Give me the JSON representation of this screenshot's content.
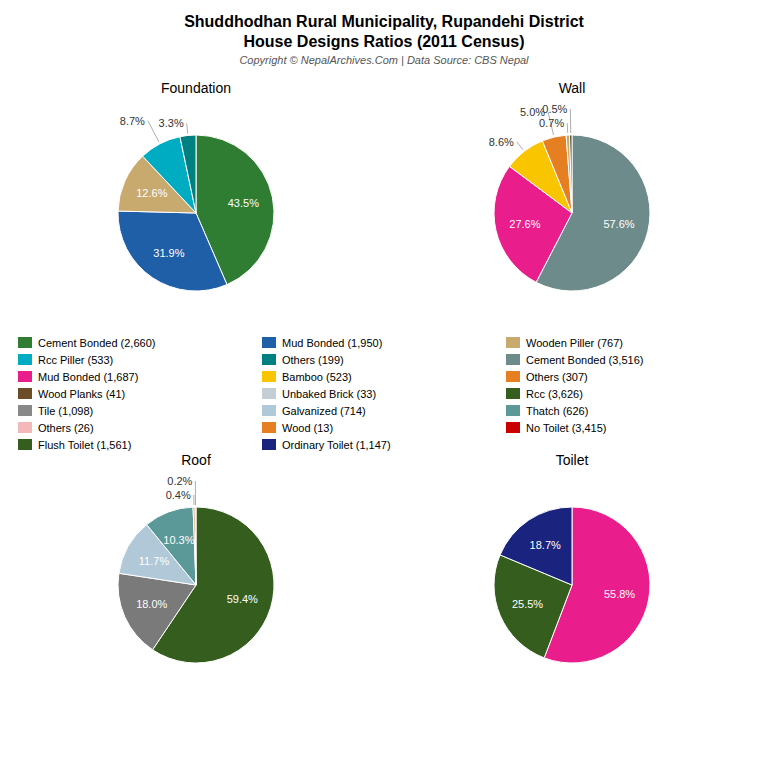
{
  "title": "Shuddhodhan Rural Municipality, Rupandehi District",
  "subtitle": "House Designs Ratios (2011 Census)",
  "annotations": [
    "Copyright © NepalArchives.Com | Data Source: CBS Nepal"
  ],
  "legend_entries": [
    {
      "name": "Cement Bonded (2,660)",
      "color": "#2e7d32"
    },
    {
      "name": "Rcc Piller (533)",
      "color": "#00acc1"
    },
    {
      "name": "Mud Bonded (1,687)",
      "color": "#e91e8c"
    },
    {
      "name": "Wood Planks (41)",
      "color": "#6d4c28"
    },
    {
      "name": "Tile (1,098)",
      "color": "#888888"
    },
    {
      "name": "Others (26)",
      "color": "#f4b8b8"
    },
    {
      "name": "Flush Toilet (1,561)",
      "color": "#355e1e"
    },
    {
      "name": "Mud Bonded (1,950)",
      "color": "#1e5fa8"
    },
    {
      "name": "Others (199)",
      "color": "#008080"
    },
    {
      "name": "Bamboo (523)",
      "color": "#f9c400"
    },
    {
      "name": "Unbaked Brick (33)",
      "color": "#c5cdd4"
    },
    {
      "name": "Galvanized (714)",
      "color": "#b0c8d8"
    },
    {
      "name": "Wood (13)",
      "color": "#e67e22"
    },
    {
      "name": "Ordinary Toilet (1,147)",
      "color": "#1a237e"
    },
    {
      "name": "Wooden Piller (767)",
      "color": "#c8a96e"
    },
    {
      "name": "Cement Bonded (3,516)",
      "color": "#6e8b8b"
    },
    {
      "name": "Others (307)",
      "color": "#e67e22"
    },
    {
      "name": "Rcc (3,626)",
      "color": "#355e1e"
    },
    {
      "name": "Thatch (626)",
      "color": "#5b9999"
    },
    {
      "name": "No Toilet (3,415)",
      "color": "#cc0000"
    }
  ],
  "chart_data": [
    {
      "type": "pie",
      "title": "Foundation",
      "values": [
        43.5,
        31.9,
        12.6,
        8.7,
        3.3
      ],
      "value_labels": [
        "43.5%",
        "31.9%",
        "12.6%",
        "8.7%",
        "3.3%"
      ],
      "colors": [
        "#2e7d32",
        "#1e5fa8",
        "#c8a96e",
        "#00acc1",
        "#008080"
      ],
      "data_labels": true
    },
    {
      "type": "pie",
      "title": "Wall",
      "values": [
        57.6,
        27.6,
        8.6,
        5.0,
        0.7,
        0.5
      ],
      "value_labels": [
        "57.6%",
        "27.6%",
        "8.6%",
        "5.0%",
        "0.7%",
        "0.5%"
      ],
      "colors": [
        "#6e8b8b",
        "#e91e8c",
        "#f9c400",
        "#e67e22",
        "#c8a96e",
        "#4a4a2a"
      ],
      "data_labels": true
    },
    {
      "type": "pie",
      "title": "Roof",
      "values": [
        59.4,
        18.0,
        11.7,
        10.3,
        0.4,
        0.2
      ],
      "value_labels": [
        "59.4%",
        "18.0%",
        "11.7%",
        "10.3%",
        "0.4%",
        "0.2%"
      ],
      "colors": [
        "#355e1e",
        "#7a7a7a",
        "#b0c8d8",
        "#5b9999",
        "#e87020",
        "#c0a060"
      ],
      "data_labels": true
    },
    {
      "type": "pie",
      "title": "Toilet",
      "values": [
        55.8,
        25.5,
        18.7
      ],
      "value_labels": [
        "55.8%",
        "25.5%",
        "18.7%"
      ],
      "colors": [
        "#e91e8c",
        "#355e1e",
        "#1a237e"
      ],
      "data_labels": true
    }
  ]
}
